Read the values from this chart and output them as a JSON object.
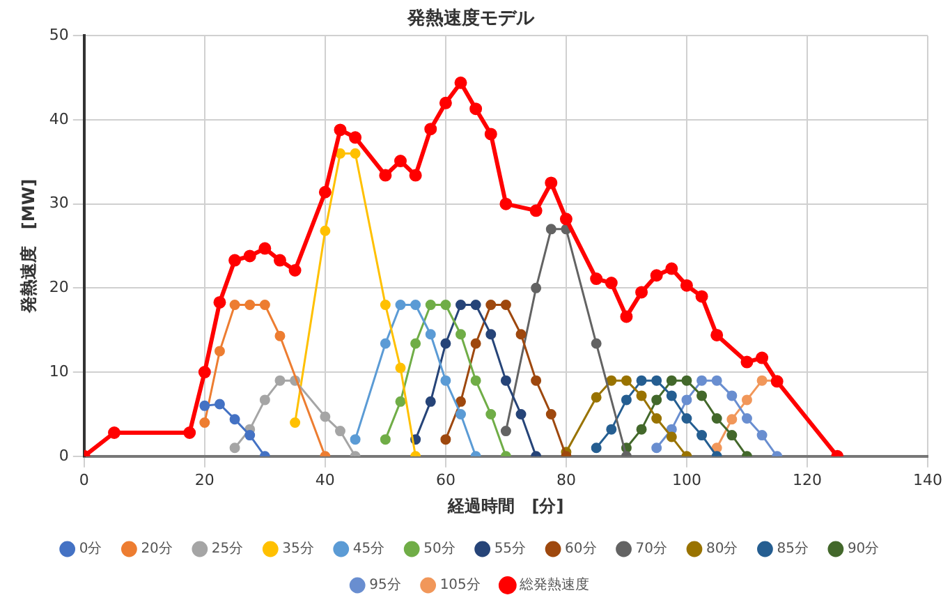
{
  "chart_data": {
    "type": "line",
    "title": "発熱速度モデル",
    "xlabel": "経過時間　[分]",
    "ylabel": "発熱速度　[MW]",
    "xlim": [
      0,
      140
    ],
    "xticks": [
      0,
      20,
      40,
      60,
      80,
      100,
      120,
      140
    ],
    "ylim": [
      0,
      50
    ],
    "yticks": [
      0,
      10,
      20,
      30,
      40,
      50
    ],
    "grid": true,
    "legend": "bottom",
    "marker": "circle",
    "line_style": "solid",
    "series": [
      {
        "name": "0分",
        "color": "#4472c4",
        "x": [
          20,
          22.5,
          25,
          27.5,
          30
        ],
        "values": [
          6,
          6.2,
          4.4,
          2.5,
          0
        ]
      },
      {
        "name": "20分",
        "color": "#ed7d31",
        "x": [
          20,
          22.5,
          25,
          27.5,
          30,
          32.5,
          40
        ],
        "values": [
          4,
          12.5,
          18,
          18,
          18,
          14.3,
          0
        ]
      },
      {
        "name": "25分",
        "color": "#a5a5a5",
        "x": [
          25,
          27.5,
          30,
          32.5,
          35,
          40,
          42.5,
          45
        ],
        "values": [
          1,
          3.2,
          6.7,
          9,
          9,
          4.7,
          3,
          0
        ]
      },
      {
        "name": "35分",
        "color": "#ffc000",
        "x": [
          35,
          40,
          42.5,
          45,
          50,
          52.5,
          55
        ],
        "values": [
          4,
          26.8,
          36,
          36,
          18,
          10.5,
          0
        ]
      },
      {
        "name": "45分",
        "color": "#5b9bd5",
        "x": [
          45,
          50,
          52.5,
          55,
          57.5,
          60,
          62.5,
          65
        ],
        "values": [
          2,
          13.4,
          18,
          18,
          14.5,
          9,
          5,
          0
        ]
      },
      {
        "name": "50分",
        "color": "#70ad47",
        "x": [
          50,
          52.5,
          55,
          57.5,
          60,
          62.5,
          65,
          67.5,
          70
        ],
        "values": [
          2,
          6.5,
          13.4,
          18,
          18,
          14.5,
          9,
          5,
          0
        ]
      },
      {
        "name": "55分",
        "color": "#264478",
        "x": [
          55,
          57.5,
          60,
          62.5,
          65,
          67.5,
          70,
          72.5,
          75
        ],
        "values": [
          2,
          6.5,
          13.4,
          18,
          18,
          14.5,
          9,
          5,
          0
        ]
      },
      {
        "name": "60分",
        "color": "#9e480e",
        "x": [
          60,
          62.5,
          65,
          67.5,
          70,
          72.5,
          75,
          77.5,
          80
        ],
        "values": [
          2,
          6.5,
          13.4,
          18,
          18,
          14.5,
          9,
          5,
          0
        ]
      },
      {
        "name": "70分",
        "color": "#636363",
        "x": [
          70,
          75,
          77.5,
          80,
          85,
          90
        ],
        "values": [
          3,
          20,
          27,
          27,
          13.4,
          0
        ]
      },
      {
        "name": "80分",
        "color": "#997300",
        "x": [
          80,
          85,
          87.5,
          90,
          92.5,
          95,
          97.5,
          100
        ],
        "values": [
          0.5,
          7,
          9,
          9,
          7.2,
          4.5,
          2.3,
          0
        ]
      },
      {
        "name": "85分",
        "color": "#255e91",
        "x": [
          85,
          87.5,
          90,
          92.5,
          95,
          97.5,
          100,
          102.5,
          105
        ],
        "values": [
          1,
          3.2,
          6.7,
          9,
          9,
          7.2,
          4.5,
          2.5,
          0
        ]
      },
      {
        "name": "90分",
        "color": "#43682b",
        "x": [
          90,
          92.5,
          95,
          97.5,
          100,
          102.5,
          105,
          107.5,
          110
        ],
        "values": [
          1,
          3.2,
          6.7,
          9,
          9,
          7.2,
          4.5,
          2.5,
          0
        ]
      },
      {
        "name": "95分",
        "color": "#698ed0",
        "x": [
          95,
          97.5,
          100,
          102.5,
          105,
          107.5,
          110,
          112.5,
          115
        ],
        "values": [
          1,
          3.2,
          6.7,
          9,
          9,
          7.2,
          4.5,
          2.5,
          0
        ]
      },
      {
        "name": "105分",
        "color": "#f1975a",
        "x": [
          105,
          107.5,
          110,
          112.5,
          115
        ],
        "values": [
          1,
          4.4,
          6.7,
          9,
          9
        ]
      },
      {
        "name": "総発熱速度",
        "color": "#ff0000",
        "x": [
          0,
          5,
          17.5,
          20,
          22.5,
          25,
          27.5,
          30,
          32.5,
          35,
          40,
          42.5,
          45,
          50,
          52.5,
          55,
          57.5,
          60,
          62.5,
          65,
          67.5,
          70,
          75,
          77.5,
          80,
          85,
          87.5,
          90,
          92.5,
          95,
          97.5,
          100,
          102.5,
          105,
          110,
          112.5,
          115,
          125
        ],
        "values": [
          0,
          2.8,
          2.8,
          10,
          18.3,
          23.3,
          23.8,
          24.7,
          23.3,
          22.1,
          31.4,
          38.8,
          37.9,
          33.4,
          35.1,
          33.4,
          38.9,
          42,
          44.4,
          41.3,
          38.3,
          30,
          29.2,
          32.5,
          28.2,
          21.1,
          20.6,
          16.6,
          19.5,
          21.5,
          22.3,
          20.3,
          19,
          14.4,
          11.2,
          11.7,
          8.9,
          0
        ]
      }
    ]
  }
}
